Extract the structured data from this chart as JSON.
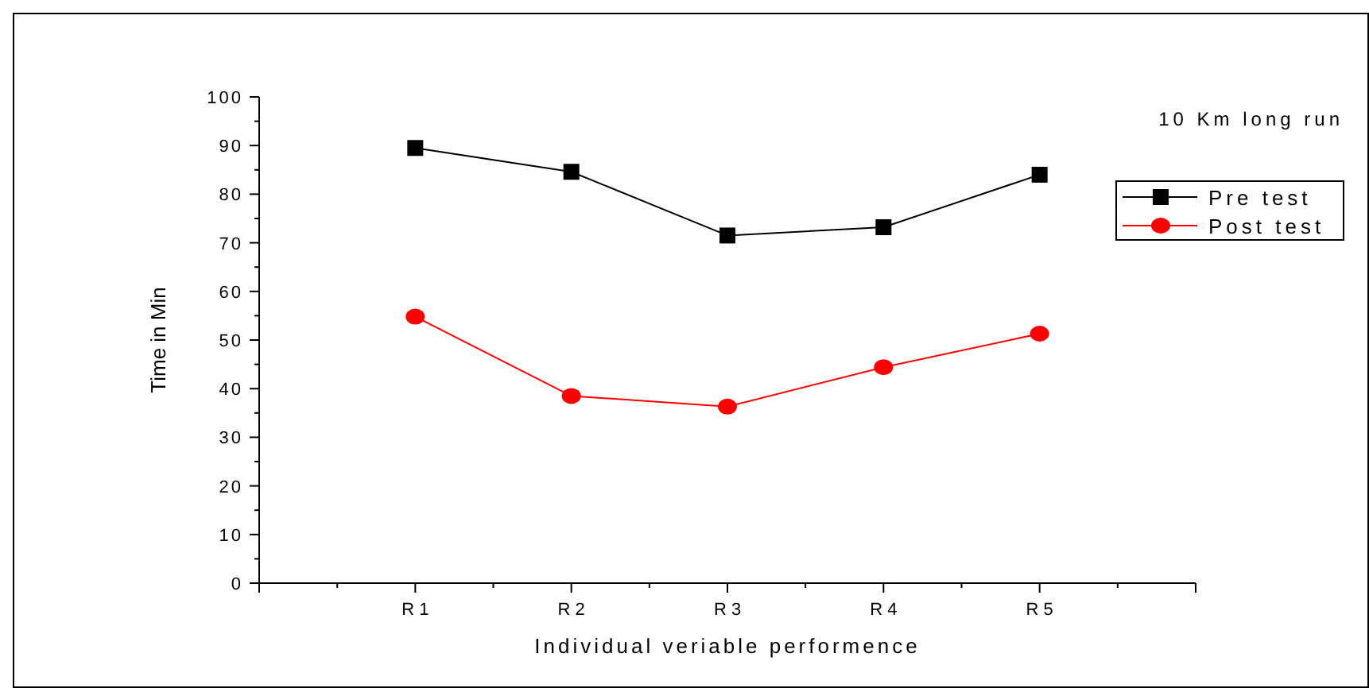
{
  "chart_data": {
    "type": "line",
    "title": "10 Km long run",
    "xlabel": "Individual veriable performence",
    "ylabel": "Time in Min",
    "categories": [
      "R 1",
      "R 2",
      "R 3",
      "R 4",
      "R 5"
    ],
    "series": [
      {
        "name": "Pre test",
        "color": "#000000",
        "marker": "square",
        "values": [
          89.5,
          84.6,
          71.5,
          73.2,
          84.0
        ]
      },
      {
        "name": "Post test",
        "color": "#ff0000",
        "marker": "circle",
        "values": [
          54.8,
          38.5,
          36.3,
          44.4,
          51.3
        ]
      }
    ],
    "ylim": [
      0,
      100
    ],
    "yticks": [
      0,
      10,
      20,
      30,
      40,
      50,
      60,
      70,
      80,
      90,
      100
    ],
    "legend": "top right",
    "grid": false,
    "line_style": "solid"
  }
}
